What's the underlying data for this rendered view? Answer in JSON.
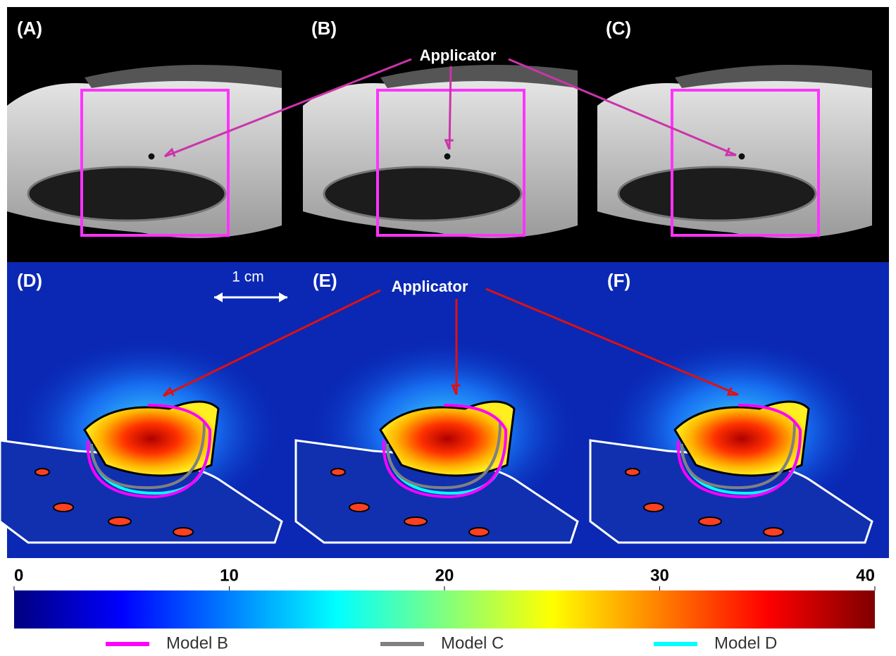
{
  "panels": [
    "(A)",
    "(B)",
    "(C)",
    "(D)",
    "(E)",
    "(F)"
  ],
  "annotations": {
    "applicator_top": "Applicator",
    "applicator_bottom": "Applicator",
    "scale_bar": "1 cm"
  },
  "colorbar": {
    "range": [
      0,
      40
    ],
    "ticks": [
      0,
      10,
      20,
      30,
      40
    ]
  },
  "legend": [
    {
      "name": "Model B",
      "color": "#ff00ff"
    },
    {
      "name": "Model C",
      "color": "#808080"
    },
    {
      "name": "Model D",
      "color": "#00ffff"
    }
  ]
}
